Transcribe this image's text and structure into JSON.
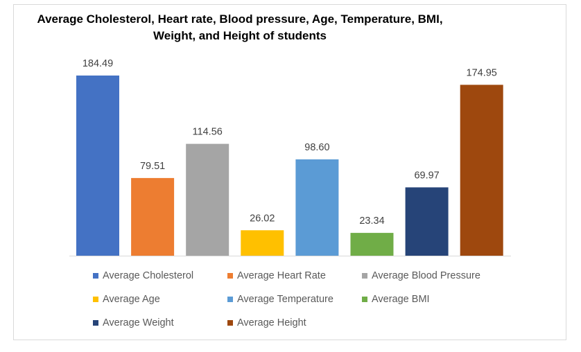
{
  "chart_data": {
    "type": "bar",
    "title": "Average Cholesterol, Heart rate, Blood pressure, Age, Temperature, BMI, Weight, and Height of students",
    "title_lines": [
      "Average Cholesterol, Heart rate, Blood pressure, Age, Temperature, BMI,",
      "Weight, and Height of students"
    ],
    "xlabel": "",
    "ylabel": "",
    "ylim": [
      0,
      200
    ],
    "grid": false,
    "legend_position": "bottom",
    "series": [
      {
        "name": "Average Cholesterol",
        "value": 184.49,
        "label": "184.49",
        "color": "#4472c4"
      },
      {
        "name": "Average Heart Rate",
        "value": 79.51,
        "label": "79.51",
        "color": "#ed7d31"
      },
      {
        "name": "Average Blood Pressure",
        "value": 114.56,
        "label": "114.56",
        "color": "#a5a5a5"
      },
      {
        "name": "Average Age",
        "value": 26.02,
        "label": "26.02",
        "color": "#ffc000"
      },
      {
        "name": "Average Temperature",
        "value": 98.6,
        "label": "98.60",
        "color": "#5b9bd5"
      },
      {
        "name": "Average BMI",
        "value": 23.34,
        "label": "23.34",
        "color": "#70ad47"
      },
      {
        "name": "Average Weight",
        "value": 69.97,
        "label": "69.97",
        "color": "#264478"
      },
      {
        "name": "Average Height",
        "value": 174.95,
        "label": "174.95",
        "color": "#9e480e"
      }
    ]
  }
}
